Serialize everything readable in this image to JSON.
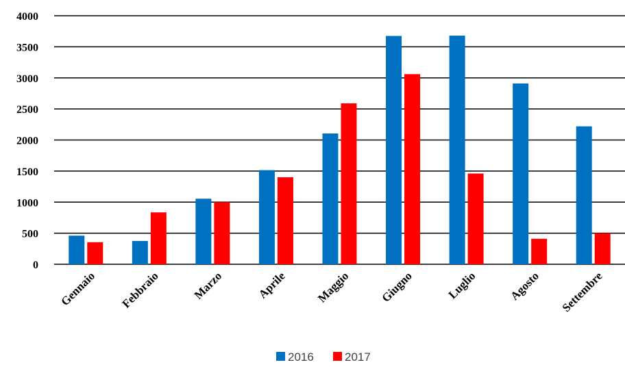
{
  "chart_data": {
    "type": "bar",
    "title": "",
    "xlabel": "",
    "ylabel": "",
    "categories": [
      "Gennaio",
      "Febbraio",
      "Marzo",
      "Aprile",
      "Maggio",
      "Giugno",
      "Luglio",
      "Agosto",
      "Settembre"
    ],
    "series": [
      {
        "name": "2016",
        "color": "#0070C0",
        "values": [
          460,
          375,
          1055,
          1515,
          2105,
          3675,
          3680,
          2910,
          2220
        ]
      },
      {
        "name": "2017",
        "color": "#FF0000",
        "values": [
          355,
          835,
          1000,
          1400,
          2590,
          3060,
          1460,
          410,
          500
        ]
      }
    ],
    "ylim": [
      0,
      4000
    ],
    "yticks": [
      "0",
      "500",
      "1000",
      "1500",
      "2000",
      "2500",
      "3000",
      "3500",
      "4000"
    ],
    "grid": true,
    "legend_position": "bottom"
  }
}
